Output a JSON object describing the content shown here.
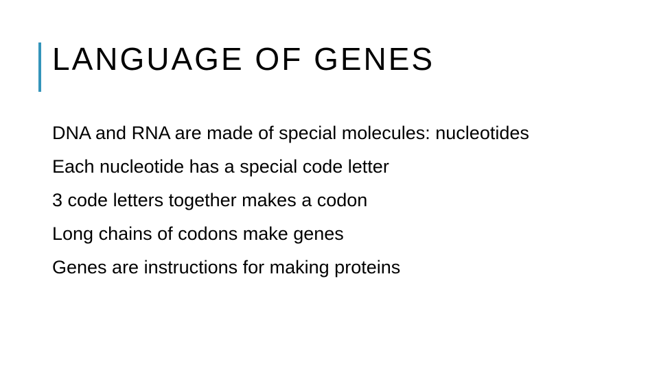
{
  "slide": {
    "title": "LANGUAGE OF GENES",
    "title_fontsize": 46,
    "title_letter_spacing": 3,
    "title_color": "#000000",
    "accent_bar_color": "#3494ba",
    "accent_bar_width": 4,
    "accent_bar_height": 72,
    "background_color": "#ffffff",
    "body_fontsize": 27,
    "body_color": "#000000",
    "body_items": [
      "DNA and RNA are made of special molecules: nucleotides",
      "Each nucleotide has a special code letter",
      "3 code letters together makes a codon",
      "Long chains of codons make genes",
      "Genes are instructions for making proteins"
    ]
  }
}
